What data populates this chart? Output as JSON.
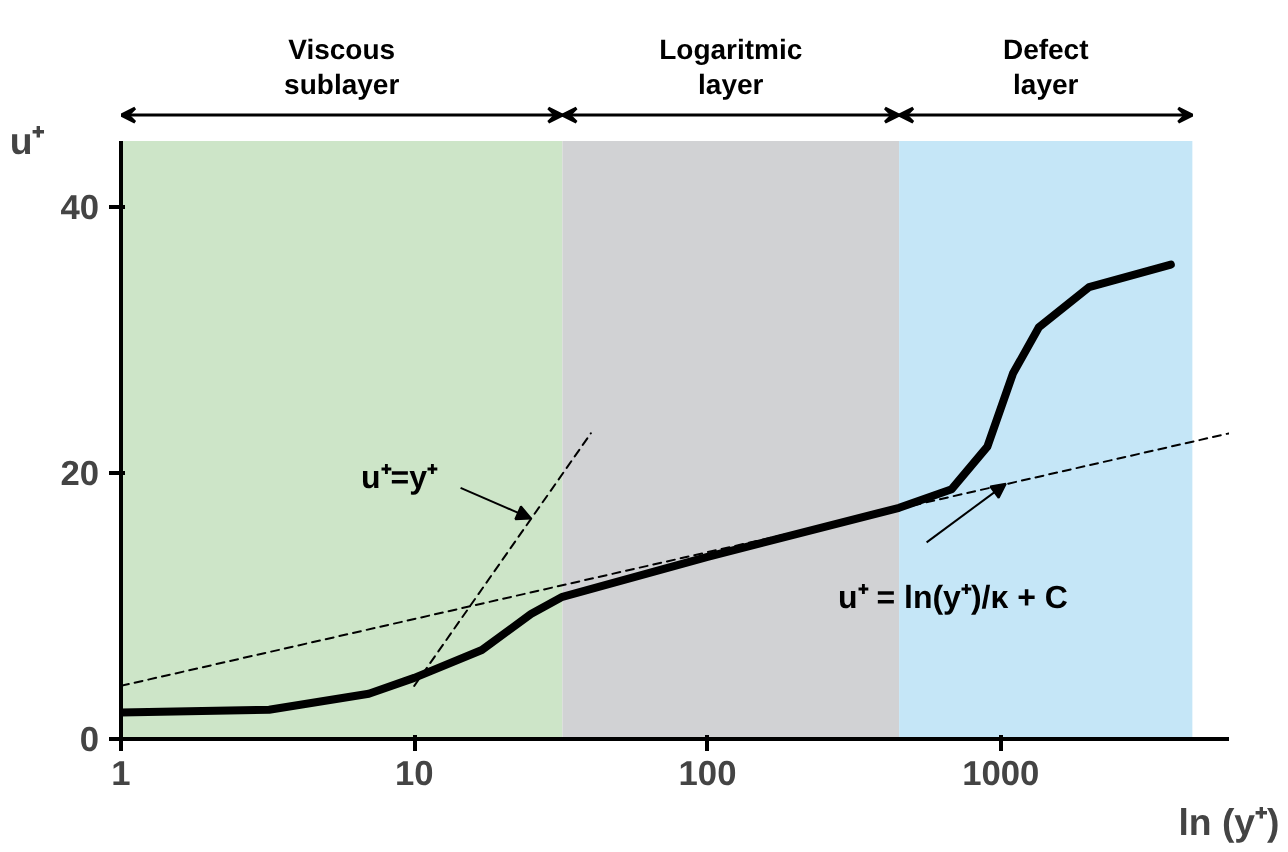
{
  "chart_data": {
    "type": "line",
    "xlabel": "ln (y⁺)",
    "ylabel": "u⁺",
    "log": "x",
    "xlim": [
      1,
      6000
    ],
    "ylim": [
      0,
      45
    ],
    "xticks": [
      1,
      10,
      100,
      1000
    ],
    "yticks": [
      0,
      20,
      40
    ],
    "grid": false,
    "marker": "none",
    "series": [
      {
        "x": [
          1,
          3.2,
          7,
          10,
          17,
          25,
          32,
          100,
          450,
          680,
          900,
          1100,
          1350,
          2000,
          3800
        ],
        "values": [
          2.0,
          2.2,
          3.4,
          4.6,
          6.7,
          9.4,
          10.7,
          13.7,
          17.4,
          18.8,
          22,
          27.5,
          31,
          34,
          35.7
        ],
        "color": "#000000",
        "line_style": "solid"
      },
      {
        "x": [
          10,
          40
        ],
        "values": [
          4,
          23
        ],
        "color": "#000000",
        "line_style": "dashed"
      },
      {
        "x": [
          1,
          6000
        ],
        "values": [
          4,
          23
        ],
        "color": "#000000",
        "line_style": "dashed"
      }
    ],
    "bands": [
      {
        "axis": "x",
        "from": 1,
        "to": 32,
        "label": "Viscous\nsublayer",
        "color": "#cde5c8"
      },
      {
        "axis": "x",
        "from": 32,
        "to": 450,
        "label": "Logaritmic\nlayer",
        "color": "#d1d2d4"
      },
      {
        "axis": "x",
        "from": 450,
        "to": 4500,
        "label": "Defect\nlayer",
        "color": "#c5e6f7"
      }
    ],
    "annotations": [
      {
        "text": "u⁺=y⁺",
        "x": 25,
        "y": 16.6
      },
      {
        "text": "u⁺ = ln(y⁺)/κ   + C",
        "x": 1040,
        "y": 19.2
      }
    ]
  }
}
